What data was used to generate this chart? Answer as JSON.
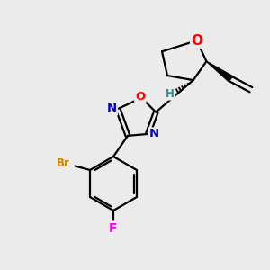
{
  "bg_color": "#ebebeb",
  "bond_color": "#000000",
  "bond_width": 1.6,
  "atom_colors": {
    "O_ring": "#ff0000",
    "O_oxadiazole": "#ff0000",
    "N": "#0000cc",
    "Br": "#cc8800",
    "F": "#ee00ee",
    "H": "#2e8b8b",
    "C": "#000000"
  },
  "font_size_atom": 10,
  "font_size_small": 8.5
}
